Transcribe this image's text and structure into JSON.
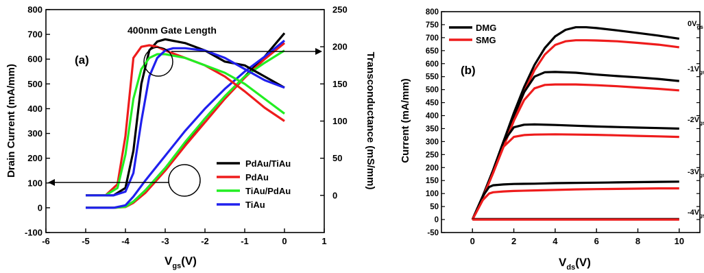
{
  "colors": {
    "black": "#000000",
    "red": "#ee1c1c",
    "green": "#22ee22",
    "blue": "#2020ee"
  },
  "chart_data": [
    {
      "type": "line",
      "panel_label": "(a)",
      "annotation": "400nm Gate Length",
      "xlabel_main": "V",
      "xlabel_sub": "gs",
      "xlabel_unit": "(V)",
      "ylabel": "Drain Current (mA/mm)",
      "y2label": "Transconductance (mS/mm)",
      "xlim": [
        -6,
        1
      ],
      "ylim": [
        -100,
        800
      ],
      "y2lim": [
        -50,
        250
      ],
      "x_ticks": [
        -6,
        -5,
        -4,
        -3,
        -2,
        -1,
        0,
        1
      ],
      "y_ticks": [
        -100,
        0,
        100,
        200,
        300,
        400,
        500,
        600,
        700,
        800
      ],
      "y2_ticks": [
        0,
        50,
        100,
        150,
        200,
        250
      ],
      "legend": [
        {
          "label": "PdAu/TiAu",
          "color": "#000000"
        },
        {
          "label": "PdAu",
          "color": "#ee1c1c"
        },
        {
          "label": "TiAu/PdAu",
          "color": "#22ee22"
        },
        {
          "label": "TiAu",
          "color": "#2020ee"
        }
      ],
      "series": [
        {
          "name": "PdAu/TiAu",
          "kind": "drain-current",
          "color": "#000000",
          "x": [
            -5,
            -4.3,
            -4,
            -3.8,
            -3.5,
            -3,
            -2.5,
            -2,
            -1.5,
            -1,
            -0.5,
            0
          ],
          "y": [
            0,
            0,
            5,
            25,
            70,
            160,
            260,
            360,
            450,
            530,
            610,
            705
          ]
        },
        {
          "name": "PdAu",
          "kind": "drain-current",
          "color": "#ee1c1c",
          "x": [
            -5,
            -4.3,
            -4,
            -3.8,
            -3.5,
            -3,
            -2.5,
            -2,
            -1.5,
            -1,
            -0.5,
            0
          ],
          "y": [
            0,
            0,
            3,
            20,
            60,
            150,
            250,
            345,
            440,
            525,
            600,
            665
          ]
        },
        {
          "name": "TiAu/PdAu",
          "kind": "drain-current",
          "color": "#22ee22",
          "x": [
            -5,
            -4.3,
            -4,
            -3.8,
            -3.5,
            -3,
            -2.5,
            -2,
            -1.5,
            -1,
            -0.5,
            0
          ],
          "y": [
            0,
            0,
            4,
            25,
            70,
            160,
            265,
            360,
            450,
            530,
            585,
            635
          ]
        },
        {
          "name": "TiAu",
          "kind": "drain-current",
          "color": "#2020ee",
          "x": [
            -5,
            -4.3,
            -4,
            -3.8,
            -3.5,
            -3,
            -2.5,
            -2,
            -1.5,
            -1,
            -0.5,
            0
          ],
          "y": [
            0,
            0,
            10,
            45,
            110,
            210,
            310,
            400,
            480,
            550,
            610,
            675
          ]
        },
        {
          "name": "PdAu/TiAu",
          "kind": "transconductance",
          "color": "#000000",
          "x": [
            -5,
            -4.3,
            -4,
            -3.8,
            -3.6,
            -3.4,
            -3.2,
            -3,
            -2.8,
            -2.5,
            -2,
            -1.5,
            -1,
            -0.5,
            0
          ],
          "y": [
            0,
            0,
            10,
            60,
            150,
            195,
            207,
            210,
            208,
            205,
            195,
            180,
            175,
            160,
            145
          ]
        },
        {
          "name": "PdAu",
          "kind": "transconductance",
          "color": "#ee1c1c",
          "x": [
            -5,
            -4.5,
            -4.2,
            -4,
            -3.8,
            -3.6,
            -3.4,
            -3.2,
            -3,
            -2.5,
            -2,
            -1.5,
            -1,
            -0.5,
            0
          ],
          "y": [
            0,
            0,
            15,
            80,
            185,
            200,
            202,
            200,
            195,
            185,
            175,
            160,
            140,
            118,
            100
          ]
        },
        {
          "name": "TiAu/PdAu",
          "kind": "transconductance",
          "color": "#22ee22",
          "x": [
            -5,
            -4.5,
            -4.2,
            -4,
            -3.8,
            -3.6,
            -3.4,
            -3.2,
            -3,
            -2.5,
            -2,
            -1.5,
            -1,
            -0.5,
            0
          ],
          "y": [
            0,
            0,
            10,
            55,
            130,
            170,
            185,
            190,
            190,
            185,
            175,
            165,
            150,
            130,
            110
          ]
        },
        {
          "name": "TiAu",
          "kind": "transconductance",
          "color": "#2020ee",
          "x": [
            -5,
            -4.3,
            -4,
            -3.8,
            -3.6,
            -3.4,
            -3.2,
            -3,
            -2.8,
            -2.5,
            -2,
            -1.5,
            -1,
            -0.5,
            0
          ],
          "y": [
            0,
            0,
            5,
            30,
            100,
            160,
            185,
            195,
            198,
            198,
            195,
            185,
            170,
            155,
            145
          ]
        }
      ]
    },
    {
      "type": "line",
      "panel_label": "(b)",
      "xlabel_main": "V",
      "xlabel_sub": "ds",
      "xlabel_unit": "(V)",
      "ylabel": "Current (mA/mm)",
      "xlim": [
        -1.5,
        11
      ],
      "ylim": [
        -50,
        800
      ],
      "x_ticks": [
        0,
        2,
        4,
        6,
        8,
        10
      ],
      "y_ticks": [
        -50,
        0,
        50,
        100,
        150,
        200,
        250,
        300,
        350,
        400,
        450,
        500,
        550,
        600,
        650,
        700,
        750,
        800
      ],
      "legend": [
        {
          "label": "DMG",
          "color": "#000000"
        },
        {
          "label": "SMG",
          "color": "#ee1c1c"
        }
      ],
      "gate_labels": [
        {
          "main": "0V",
          "sub": "gs",
          "y": 745
        },
        {
          "main": "-1V",
          "sub": "gs",
          "y": 570
        },
        {
          "main": "-2V",
          "sub": "gs",
          "y": 375
        },
        {
          "main": "-3V",
          "sub": "gs",
          "y": 175
        },
        {
          "main": "-4V",
          "sub": "gs",
          "y": 18
        }
      ],
      "series": [
        {
          "name": "DMG",
          "vgs": "0V",
          "color": "#000000",
          "x": [
            0,
            0.5,
            1,
            1.5,
            2,
            2.5,
            3,
            3.5,
            4,
            4.5,
            5,
            5.5,
            6,
            7,
            8,
            9,
            10
          ],
          "y": [
            0,
            90,
            190,
            300,
            410,
            510,
            595,
            660,
            705,
            730,
            740,
            740,
            737,
            728,
            718,
            708,
            696
          ]
        },
        {
          "name": "SMG",
          "vgs": "0V",
          "color": "#ee1c1c",
          "x": [
            0,
            0.5,
            1,
            1.5,
            2,
            2.5,
            3,
            3.5,
            4,
            4.5,
            5,
            5.5,
            6,
            7,
            8,
            9,
            10
          ],
          "y": [
            0,
            85,
            180,
            285,
            390,
            490,
            575,
            635,
            672,
            686,
            690,
            690,
            689,
            686,
            680,
            673,
            663
          ]
        },
        {
          "name": "DMG",
          "vgs": "-1V",
          "color": "#000000",
          "x": [
            0,
            0.5,
            1,
            1.5,
            2,
            2.5,
            3,
            3.5,
            4,
            5,
            6,
            7,
            8,
            9,
            10
          ],
          "y": [
            0,
            90,
            190,
            300,
            400,
            490,
            550,
            567,
            568,
            565,
            558,
            552,
            547,
            541,
            533
          ]
        },
        {
          "name": "SMG",
          "vgs": "-1V",
          "color": "#ee1c1c",
          "x": [
            0,
            0.5,
            1,
            1.5,
            2,
            2.5,
            3,
            3.5,
            4,
            5,
            6,
            7,
            8,
            9,
            10
          ],
          "y": [
            0,
            85,
            180,
            280,
            380,
            460,
            505,
            518,
            520,
            520,
            517,
            513,
            508,
            503,
            497
          ]
        },
        {
          "name": "DMG",
          "vgs": "-2V",
          "color": "#000000",
          "x": [
            0,
            0.5,
            1,
            1.5,
            2,
            2.5,
            3,
            4,
            5,
            6,
            7,
            8,
            9,
            10
          ],
          "y": [
            0,
            90,
            190,
            300,
            355,
            365,
            366,
            364,
            361,
            358,
            356,
            354,
            352,
            350
          ]
        },
        {
          "name": "SMG",
          "vgs": "-2V",
          "color": "#ee1c1c",
          "x": [
            0,
            0.5,
            1,
            1.5,
            2,
            2.5,
            3,
            4,
            5,
            6,
            7,
            8,
            9,
            10
          ],
          "y": [
            0,
            85,
            180,
            280,
            318,
            325,
            327,
            328,
            327,
            326,
            324,
            322,
            320,
            318
          ]
        },
        {
          "name": "DMG",
          "vgs": "-3V",
          "color": "#000000",
          "x": [
            0,
            0.5,
            0.8,
            1,
            1.5,
            2,
            3,
            4,
            5,
            6,
            7,
            8,
            9,
            10
          ],
          "y": [
            0,
            90,
            125,
            132,
            135,
            137,
            138,
            140,
            141,
            142,
            143,
            144,
            145,
            146
          ]
        },
        {
          "name": "SMG",
          "vgs": "-3V",
          "color": "#ee1c1c",
          "x": [
            0,
            0.5,
            0.8,
            1,
            1.5,
            2,
            3,
            4,
            5,
            6,
            7,
            8,
            9,
            10
          ],
          "y": [
            0,
            75,
            100,
            105,
            108,
            110,
            112,
            114,
            116,
            117,
            118,
            119,
            120,
            120
          ]
        },
        {
          "name": "DMG",
          "vgs": "-4V",
          "color": "#000000",
          "x": [
            0,
            10
          ],
          "y": [
            2,
            2
          ]
        },
        {
          "name": "SMG",
          "vgs": "-4V",
          "color": "#ee1c1c",
          "x": [
            0,
            10
          ],
          "y": [
            0,
            0
          ]
        }
      ]
    }
  ]
}
